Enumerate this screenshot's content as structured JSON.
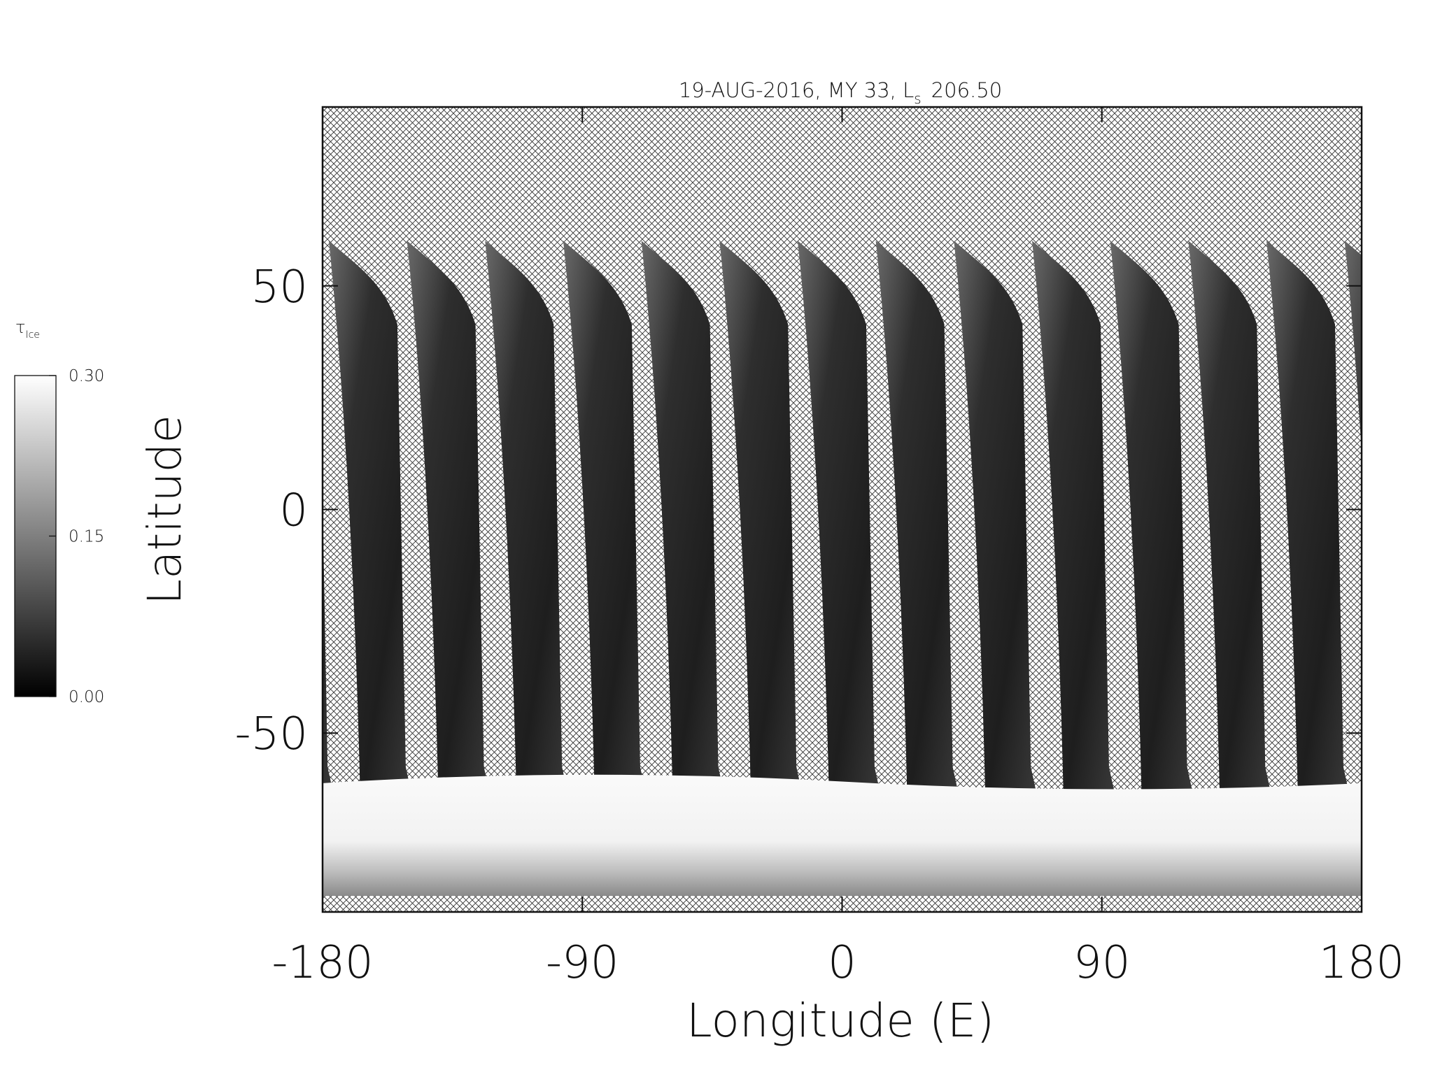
{
  "chart_data": {
    "type": "map",
    "title": {
      "text": "19-AUG-2016, MY 33,  L",
      "sub": "s",
      "tail": "206.50"
    },
    "xlabel": "Longitude (E)",
    "ylabel": "Latitude",
    "xlim": [
      -180,
      180
    ],
    "xticks": [
      -180,
      -90,
      0,
      90,
      180
    ],
    "ylim": [
      -90,
      90
    ],
    "yticks": [
      -50,
      0,
      50
    ],
    "colorbar": {
      "label": "τ",
      "label_sub": "Ice",
      "lim": [
        0,
        0.3
      ],
      "ticks": [
        {
          "value": 0,
          "label": "0.00"
        },
        {
          "value": 0.15,
          "label": "0.15"
        },
        {
          "value": 0.3,
          "label": "0.30"
        }
      ]
    }
  }
}
